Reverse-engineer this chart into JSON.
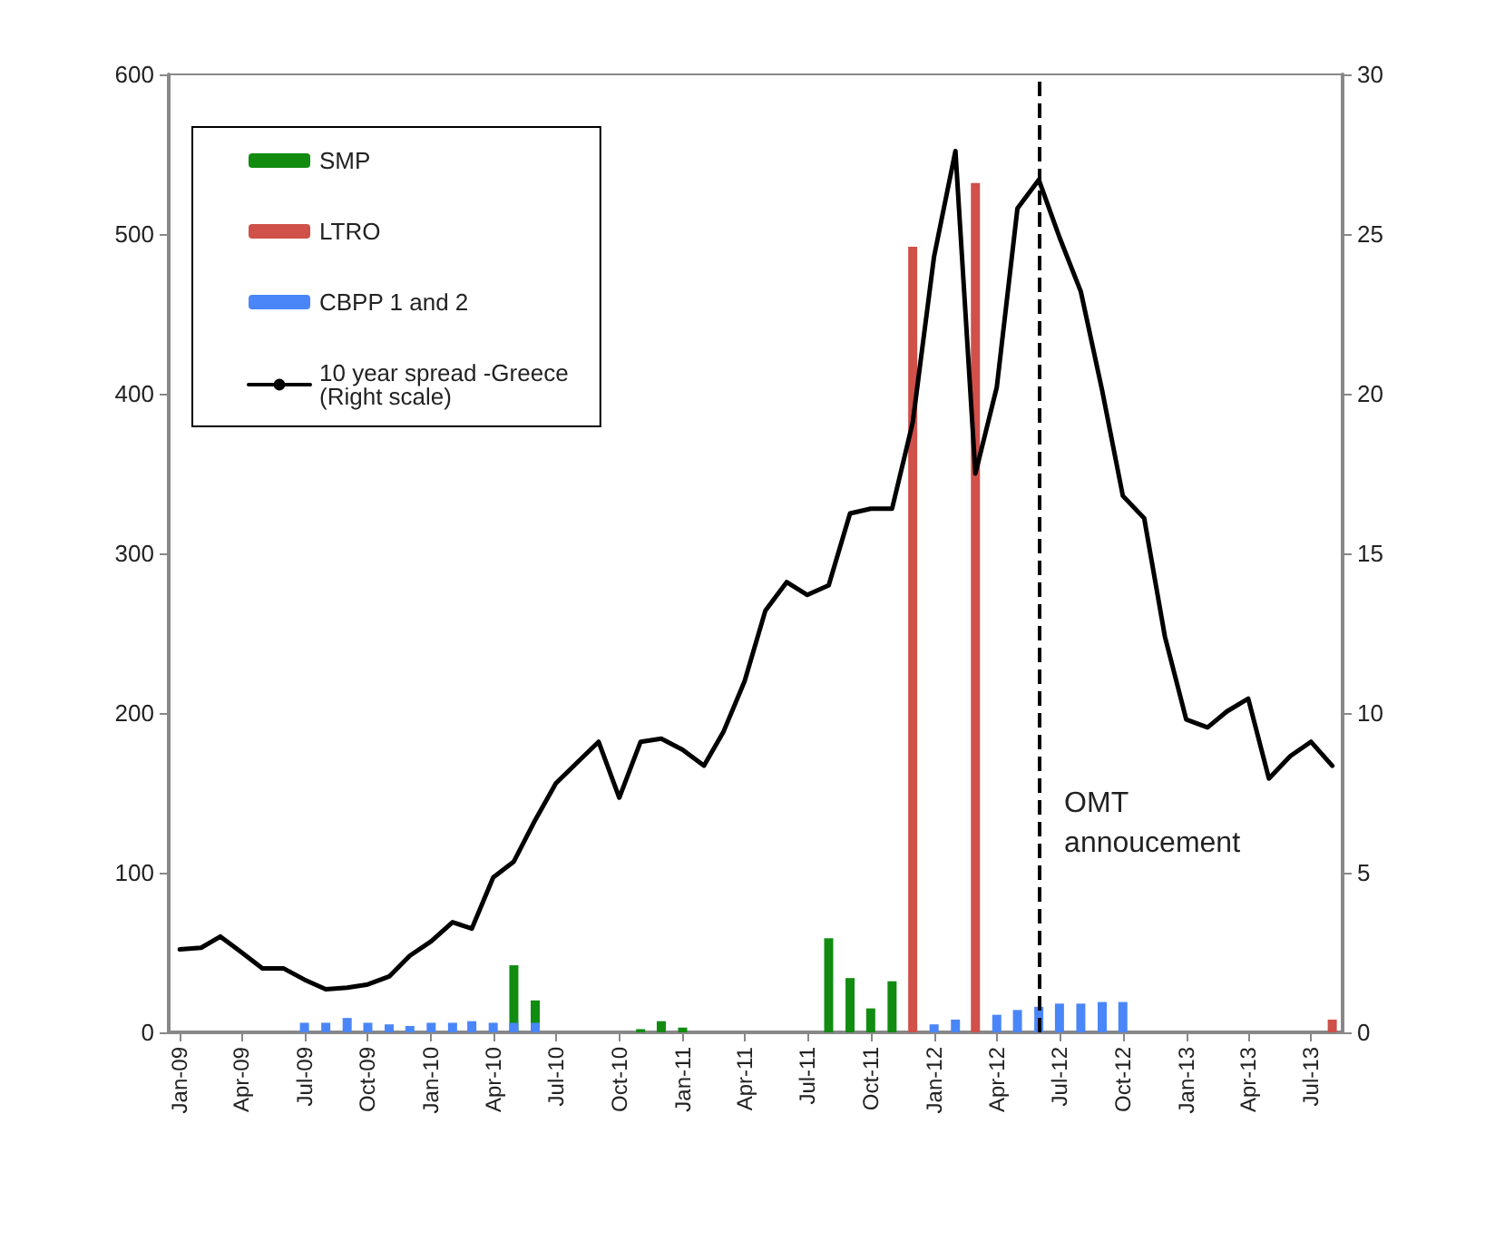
{
  "chart_data": {
    "type": "bar",
    "x": [
      "2009-01",
      "2009-02",
      "2009-03",
      "2009-04",
      "2009-05",
      "2009-06",
      "2009-07",
      "2009-08",
      "2009-09",
      "2009-10",
      "2009-11",
      "2009-12",
      "2010-01",
      "2010-02",
      "2010-03",
      "2010-04",
      "2010-05",
      "2010-06",
      "2010-07",
      "2010-08",
      "2010-09",
      "2010-10",
      "2010-11",
      "2010-12",
      "2011-01",
      "2011-02",
      "2011-03",
      "2011-04",
      "2011-05",
      "2011-06",
      "2011-07",
      "2011-08",
      "2011-09",
      "2011-10",
      "2011-11",
      "2011-12",
      "2012-01",
      "2012-02",
      "2012-03",
      "2012-04",
      "2012-05",
      "2012-06",
      "2012-07",
      "2012-08",
      "2012-09",
      "2012-10",
      "2012-11",
      "2012-12",
      "2013-01",
      "2013-02",
      "2013-03",
      "2013-04",
      "2013-05",
      "2013-06",
      "2013-07",
      "2013-08"
    ],
    "xlim": [
      "2008-12-16",
      "2013-08-16"
    ],
    "xticks": [
      {
        "value": "2009-01",
        "label": "Jan-09"
      },
      {
        "value": "2009-04",
        "label": "Apr-09"
      },
      {
        "value": "2009-07",
        "label": "Jul-09"
      },
      {
        "value": "2009-10",
        "label": "Oct-09"
      },
      {
        "value": "2010-01",
        "label": "Jan-10"
      },
      {
        "value": "2010-04",
        "label": "Apr-10"
      },
      {
        "value": "2010-07",
        "label": "Jul-10"
      },
      {
        "value": "2010-10",
        "label": "Oct-10"
      },
      {
        "value": "2011-01",
        "label": "Jan-11"
      },
      {
        "value": "2011-04",
        "label": "Apr-11"
      },
      {
        "value": "2011-07",
        "label": "Jul-11"
      },
      {
        "value": "2011-10",
        "label": "Oct-11"
      },
      {
        "value": "2012-01",
        "label": "Jan-12"
      },
      {
        "value": "2012-04",
        "label": "Apr-12"
      },
      {
        "value": "2012-07",
        "label": "Jul-12"
      },
      {
        "value": "2012-10",
        "label": "Oct-12"
      },
      {
        "value": "2013-01",
        "label": "Jan-13"
      },
      {
        "value": "2013-04",
        "label": "Apr-13"
      },
      {
        "value": "2013-07",
        "label": "Jul-13"
      }
    ],
    "ylim": [
      0,
      600
    ],
    "yticks": [
      0,
      100,
      200,
      300,
      400,
      500,
      600
    ],
    "y2lim": [
      0,
      30
    ],
    "y2ticks": [
      0,
      5,
      10,
      15,
      20,
      25,
      30
    ],
    "grid": false,
    "legend": "top left",
    "series": [
      {
        "name": "SMP",
        "color": "#118c11",
        "values": [
          null,
          null,
          null,
          null,
          null,
          null,
          null,
          null,
          null,
          null,
          null,
          null,
          null,
          null,
          null,
          null,
          42,
          20,
          null,
          null,
          null,
          null,
          2,
          7,
          3,
          null,
          null,
          null,
          null,
          null,
          null,
          59,
          34,
          15,
          32,
          null,
          null,
          null,
          null,
          null,
          null,
          null,
          null,
          null,
          null,
          null,
          null,
          null,
          null,
          null,
          null,
          null,
          null,
          null,
          null,
          null
        ]
      },
      {
        "name": "LTRO",
        "color": "#d0504a",
        "values": [
          null,
          null,
          null,
          null,
          null,
          null,
          null,
          null,
          null,
          null,
          null,
          null,
          null,
          null,
          null,
          null,
          null,
          null,
          null,
          null,
          null,
          null,
          null,
          null,
          null,
          null,
          null,
          null,
          null,
          null,
          null,
          null,
          null,
          null,
          null,
          492,
          null,
          null,
          532,
          null,
          null,
          null,
          null,
          null,
          null,
          null,
          null,
          null,
          null,
          null,
          null,
          null,
          null,
          null,
          null,
          8
        ]
      },
      {
        "name": "CBPP 1 and 2",
        "color": "#4a86f7",
        "values": [
          null,
          null,
          null,
          null,
          null,
          null,
          6,
          6,
          9,
          6,
          5,
          4,
          6,
          6,
          7,
          6,
          6,
          6,
          null,
          null,
          null,
          null,
          null,
          null,
          null,
          null,
          null,
          null,
          null,
          null,
          null,
          null,
          null,
          null,
          null,
          null,
          5,
          8,
          null,
          11,
          14,
          16,
          18,
          18,
          19,
          19,
          null,
          null,
          null,
          null,
          null,
          null,
          null,
          null,
          null,
          null
        ]
      },
      {
        "name": "10 year spread -Greece (Right scale)",
        "type": "line",
        "axis": "y2",
        "color": "#000000",
        "marker": "none",
        "line_style": "solid",
        "values": [
          2.6,
          2.65,
          3.0,
          2.5,
          2.0,
          2.0,
          1.65,
          1.35,
          1.4,
          1.5,
          1.75,
          2.4,
          2.85,
          3.45,
          3.25,
          4.85,
          5.35,
          6.65,
          7.8,
          8.45,
          9.1,
          7.35,
          9.1,
          9.2,
          8.85,
          8.35,
          9.4,
          11.0,
          13.2,
          14.1,
          13.7,
          14.0,
          16.25,
          16.4,
          16.4,
          19.1,
          24.3,
          27.6,
          17.5,
          20.2,
          25.8,
          26.7,
          24.9,
          23.2,
          20.1,
          16.8,
          16.1,
          12.4,
          9.8,
          9.55,
          10.05,
          10.45,
          7.95,
          8.65,
          9.1,
          8.35
        ]
      }
    ],
    "ref_lines": [
      {
        "axis": "x",
        "value": "2012-06",
        "label": "OMT annoucement",
        "color": "#000000",
        "line_style": "dashed"
      }
    ]
  }
}
